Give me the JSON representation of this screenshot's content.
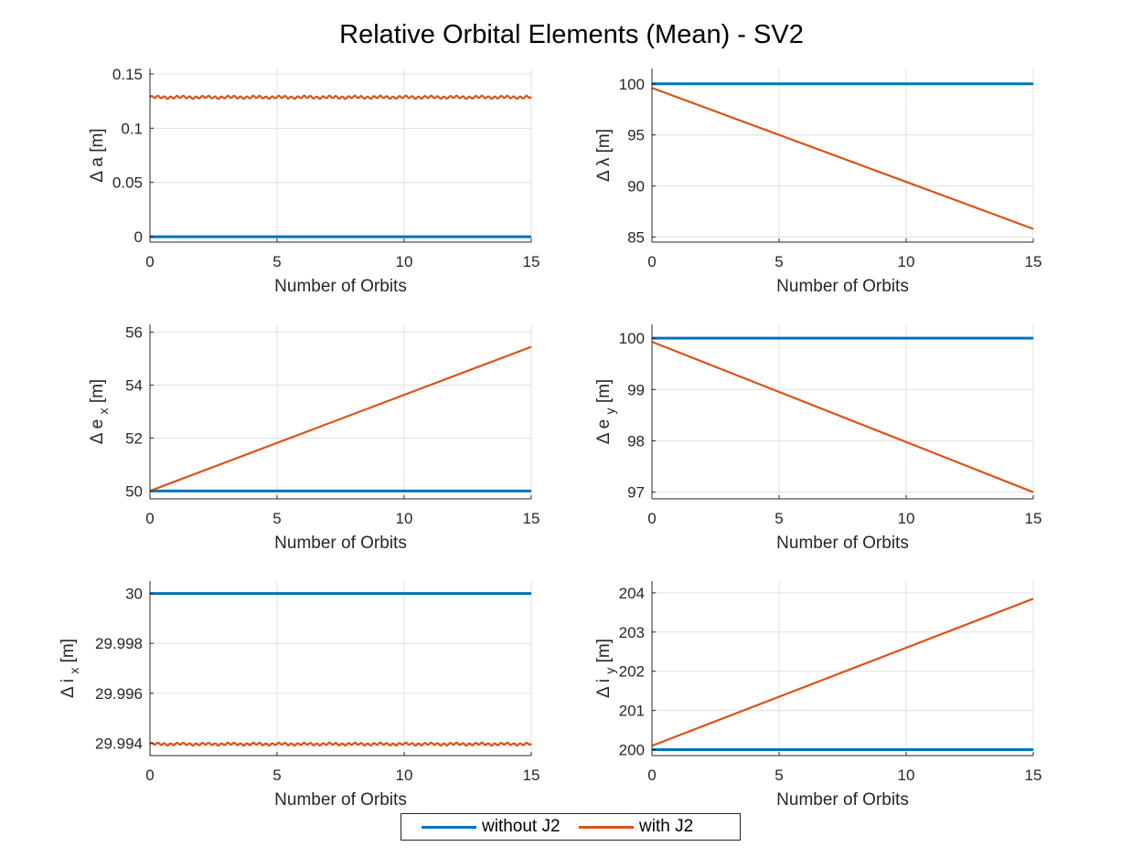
{
  "figure": {
    "title": "Relative Orbital Elements (Mean) - SV2"
  },
  "colors": {
    "without_j2": "#0072BD",
    "with_j2": "#D95319",
    "grid": "#e0e0e0",
    "axis": "#262626"
  },
  "legend": {
    "items": [
      {
        "label": "without J2",
        "color": "#0072BD"
      },
      {
        "label": "with J2",
        "color": "#D95319"
      }
    ]
  },
  "chart_data": [
    {
      "type": "line",
      "ylabel": "Δ a [m]",
      "xlabel": "Number of Orbits",
      "xlim": [
        0,
        15
      ],
      "ylim": [
        -0.005,
        0.155
      ],
      "xticks": [
        "0",
        "5",
        "10",
        "15"
      ],
      "yticks": [
        "0",
        "0.05",
        "0.1",
        "0.15"
      ],
      "ytick_values": [
        0,
        0.05,
        0.1,
        0.15
      ],
      "grid": true,
      "series": [
        {
          "name": "without J2",
          "x": [
            0,
            15
          ],
          "y": [
            0,
            0
          ]
        },
        {
          "name": "with J2",
          "x": [
            0,
            15
          ],
          "y": [
            0.1285,
            0.1285
          ],
          "oscillation": 0.0015
        }
      ]
    },
    {
      "type": "line",
      "ylabel": "Δ λ [m]",
      "xlabel": "Number of Orbits",
      "xlim": [
        0,
        15
      ],
      "ylim": [
        84.5,
        101.5
      ],
      "xticks": [
        "0",
        "5",
        "10",
        "15"
      ],
      "yticks": [
        "85",
        "90",
        "95",
        "100"
      ],
      "ytick_values": [
        85,
        90,
        95,
        100
      ],
      "grid": true,
      "series": [
        {
          "name": "without J2",
          "x": [
            0,
            15
          ],
          "y": [
            100,
            100
          ]
        },
        {
          "name": "with J2",
          "x": [
            0,
            15
          ],
          "y": [
            99.6,
            85.8
          ]
        }
      ]
    },
    {
      "type": "line",
      "ylabel": "Δ e",
      "ylabel_sub": "x",
      "ylabel_unit": "[m]",
      "xlabel": "Number of Orbits",
      "xlim": [
        0,
        15
      ],
      "ylim": [
        49.7,
        56.3
      ],
      "xticks": [
        "0",
        "5",
        "10",
        "15"
      ],
      "yticks": [
        "50",
        "52",
        "54",
        "56"
      ],
      "ytick_values": [
        50,
        52,
        54,
        56
      ],
      "grid": true,
      "series": [
        {
          "name": "without J2",
          "x": [
            0,
            15
          ],
          "y": [
            50,
            50
          ]
        },
        {
          "name": "with J2",
          "x": [
            0,
            15
          ],
          "y": [
            50,
            55.45
          ]
        }
      ]
    },
    {
      "type": "line",
      "ylabel": "Δ e",
      "ylabel_sub": "y",
      "ylabel_unit": "[m]",
      "xlabel": "Number of Orbits",
      "xlim": [
        0,
        15
      ],
      "ylim": [
        96.87,
        100.27
      ],
      "xticks": [
        "0",
        "5",
        "10",
        "15"
      ],
      "yticks": [
        "97",
        "98",
        "99",
        "100"
      ],
      "ytick_values": [
        97,
        98,
        99,
        100
      ],
      "grid": true,
      "series": [
        {
          "name": "without J2",
          "x": [
            0,
            15
          ],
          "y": [
            100,
            100
          ]
        },
        {
          "name": "with J2",
          "x": [
            0,
            15
          ],
          "y": [
            99.93,
            97.0
          ]
        }
      ]
    },
    {
      "type": "line",
      "ylabel": "Δ i",
      "ylabel_sub": "x",
      "ylabel_unit": "[m]",
      "xlabel": "Number of Orbits",
      "xlim": [
        0,
        15
      ],
      "ylim": [
        29.9935,
        30.0005
      ],
      "xticks": [
        "0",
        "5",
        "10",
        "15"
      ],
      "yticks": [
        "29.994",
        "29.996",
        "29.998",
        "30"
      ],
      "ytick_values": [
        29.994,
        29.996,
        29.998,
        30
      ],
      "grid": true,
      "series": [
        {
          "name": "without J2",
          "x": [
            0,
            15
          ],
          "y": [
            30,
            30
          ]
        },
        {
          "name": "with J2",
          "x": [
            0,
            15
          ],
          "y": [
            29.99396,
            29.99396
          ],
          "oscillation": 6e-05
        }
      ]
    },
    {
      "type": "line",
      "ylabel": "Δ i",
      "ylabel_sub": "y",
      "ylabel_unit": "[m]",
      "xlabel": "Number of Orbits",
      "xlim": [
        0,
        15
      ],
      "ylim": [
        199.85,
        204.3
      ],
      "xticks": [
        "0",
        "5",
        "10",
        "15"
      ],
      "yticks": [
        "200",
        "201",
        "202",
        "203",
        "204"
      ],
      "ytick_values": [
        200,
        201,
        202,
        203,
        204
      ],
      "grid": true,
      "series": [
        {
          "name": "without J2",
          "x": [
            0,
            15
          ],
          "y": [
            200,
            200
          ]
        },
        {
          "name": "with J2",
          "x": [
            0,
            15
          ],
          "y": [
            200.1,
            203.85
          ]
        }
      ]
    }
  ]
}
